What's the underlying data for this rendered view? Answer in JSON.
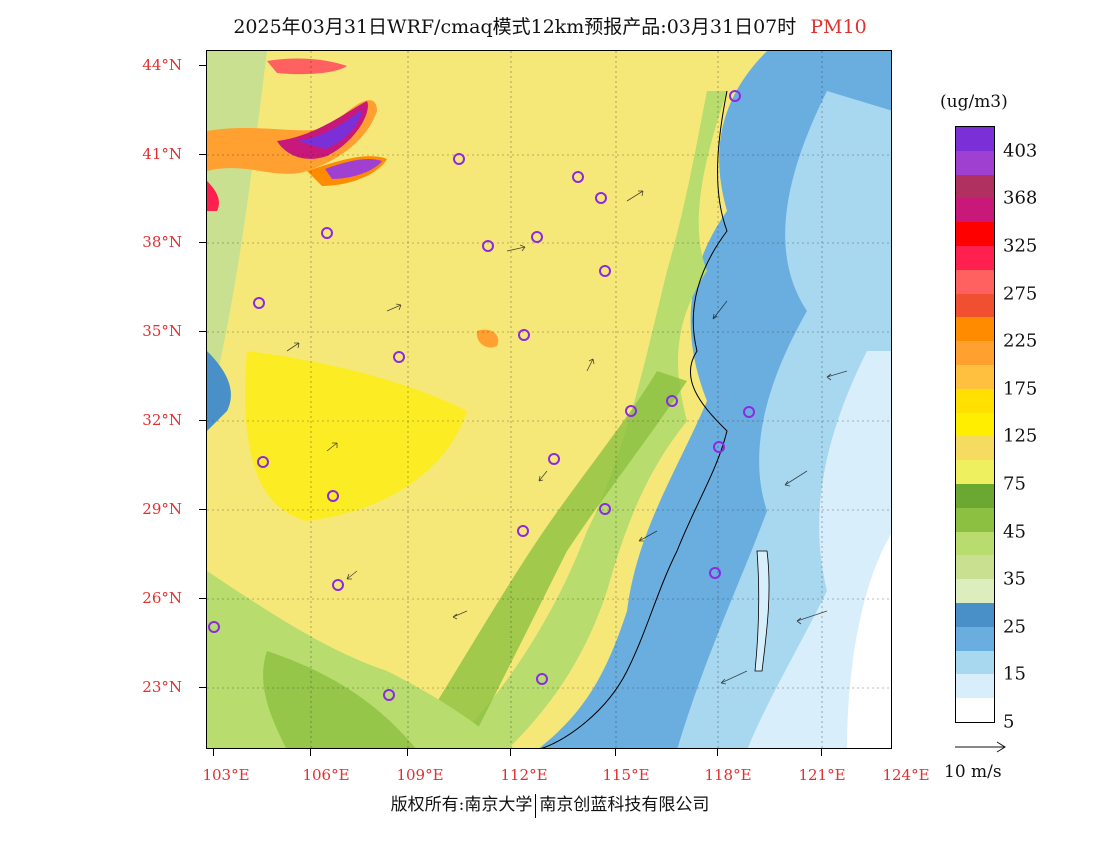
{
  "title": {
    "main": "2025年03月31日WRF/cmaq模式12km预报产品:03月31日07时",
    "pollutant": "PM10"
  },
  "axes": {
    "lat_labels": [
      "44°N",
      "41°N",
      "38°N",
      "35°N",
      "32°N",
      "29°N",
      "26°N",
      "23°N"
    ],
    "lon_labels": [
      "103°E",
      "106°E",
      "109°E",
      "112°E",
      "115°E",
      "118°E",
      "121°E",
      "124°E"
    ]
  },
  "colorbar": {
    "unit": "(ug/m3)",
    "labels": [
      "403",
      "368",
      "325",
      "275",
      "225",
      "175",
      "125",
      "75",
      "45",
      "35",
      "25",
      "15",
      "5"
    ],
    "colors": [
      "#7b2fd6",
      "#a040d0",
      "#b03060",
      "#c8187a",
      "#ff0000",
      "#ff2050",
      "#ff6060",
      "#f05030",
      "#ff8c00",
      "#ffa030",
      "#ffc040",
      "#ffe000",
      "#ffee00",
      "#f5dc60",
      "#eef060",
      "#6aa832",
      "#8cc040",
      "#b8dc6e",
      "#c8e090",
      "#dceebe",
      "#4a90c8",
      "#6aaee0",
      "#a8d8f0",
      "#d8eefa",
      "#ffffff"
    ]
  },
  "wind_key": {
    "label": "10 m/s"
  },
  "copyright": {
    "left": "版权所有:南京大学",
    "right": "南京创蓝科技有限公司"
  }
}
